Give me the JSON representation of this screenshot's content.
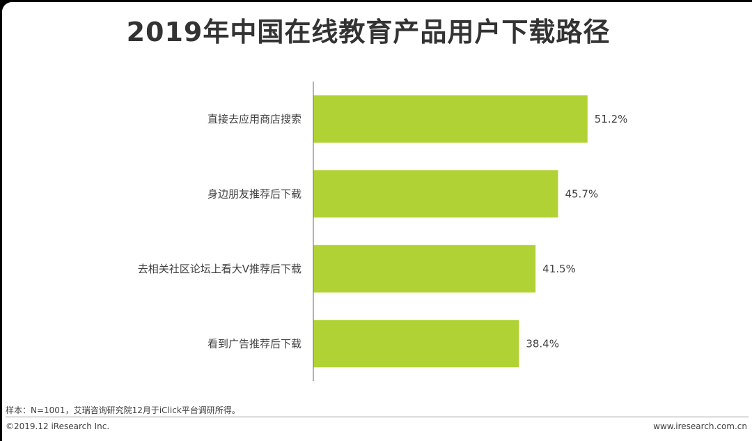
{
  "colors": {
    "bar": "#b1d235",
    "axis": "#7f7f7f",
    "text": "#404040",
    "title": "#333333"
  },
  "chart_data": {
    "type": "bar",
    "orientation": "horizontal",
    "title": "2019年中国在线教育产品用户下载路径",
    "categories": [
      "直接去应用商店搜索",
      "身边朋友推荐后下载",
      "去相关社区论坛上看大V推荐后下载",
      "看到广告推荐后下载"
    ],
    "values": [
      51.2,
      45.7,
      41.5,
      38.4
    ],
    "data_labels": [
      "51.2%",
      "45.7%",
      "41.5%",
      "38.4%"
    ],
    "value_unit": "%",
    "xlim": [
      0,
      55
    ],
    "grid": false,
    "legend": "none"
  },
  "footer": {
    "source": "样本：N=1001，艾瑞咨询研究院12月于iClick平台调研所得。",
    "copyright": "©2019.12 iResearch Inc.",
    "website": "www.iresearch.com.cn"
  }
}
